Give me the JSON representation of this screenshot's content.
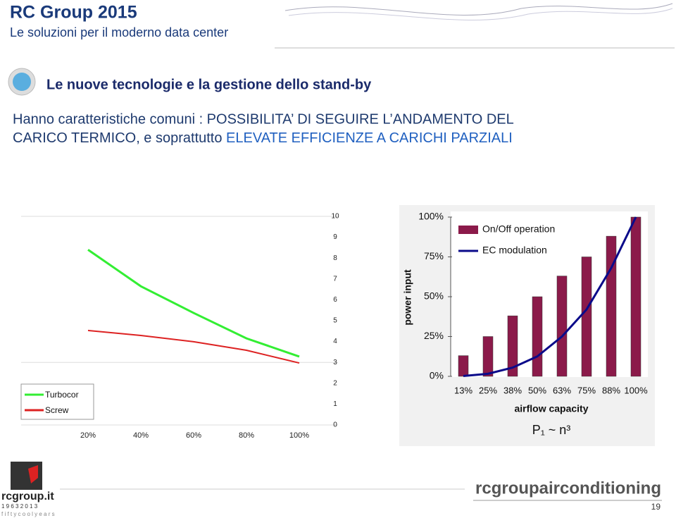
{
  "header": {
    "title": "RC Group 2015",
    "subtitle": "Le soluzioni per il moderno data center"
  },
  "heading": "Le nuove tecnologie e la gestione dello stand-by",
  "body": {
    "line1": "Hanno caratteristiche comuni : POSSIBILITA’ DI SEGUIRE L’ANDAMENTO DEL",
    "line2": "CARICO TERMICO, e soprattutto ",
    "highlight": "ELEVATE EFFICIENZE  A CARICHI PARZIALI"
  },
  "chart_data": [
    {
      "type": "line",
      "categories": [
        "20%",
        "40%",
        "60%",
        "80%",
        "100%"
      ],
      "series": [
        {
          "name": "Turbocor",
          "color": "#33ee33",
          "values": [
            8.4,
            6.65,
            5.37,
            4.15,
            3.28
          ]
        },
        {
          "name": "Screw",
          "color": "#dd2222",
          "values": [
            4.53,
            4.29,
            3.99,
            3.58,
            2.97
          ]
        }
      ],
      "ylim": [
        0,
        10
      ],
      "yticks": [
        0,
        1,
        2,
        3,
        4,
        5,
        6,
        7,
        8,
        9,
        10
      ],
      "grid": true,
      "legend": "bottom-left"
    },
    {
      "type": "bar-line",
      "y_label": "power input",
      "x_label": "airflow capacity",
      "annotation": "P₁ ~ n³",
      "categories": [
        "13%",
        "25%",
        "38%",
        "50%",
        "63%",
        "75%",
        "88%",
        "100%"
      ],
      "series": [
        {
          "name": "On/Off operation",
          "kind": "bar",
          "color": "#8b1a4a",
          "values": [
            13,
            25,
            38,
            50,
            63,
            75,
            88,
            100
          ]
        },
        {
          "name": "EC modulation",
          "kind": "line",
          "color": "#0a0a8a",
          "values": [
            0.2,
            1.6,
            5.5,
            12.5,
            25,
            42,
            68,
            100
          ]
        }
      ],
      "ylim": [
        0,
        100
      ],
      "yticks": [
        {
          "value": 0,
          "label": "0%"
        },
        {
          "value": 25,
          "label": "25%"
        },
        {
          "value": 50,
          "label": "50%"
        },
        {
          "value": 75,
          "label": "75%"
        },
        {
          "value": 100,
          "label": "100%"
        }
      ],
      "legend": "top-left"
    }
  ],
  "footer": {
    "site": "rcgroup.it",
    "years": "1 9 6 3 2 0 1 3",
    "motto": "f i f t y c o o l y e a r s",
    "brand": "rcgroupairconditioning",
    "page": "19"
  }
}
